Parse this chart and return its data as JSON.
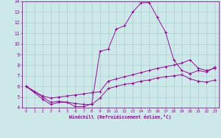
{
  "xlabel": "Windchill (Refroidissement éolien,°C)",
  "bg_color": "#cce8e8",
  "grid_color": "#aacccc",
  "line_color": "#990099",
  "xlim": [
    -0.5,
    23.5
  ],
  "ylim": [
    4,
    14
  ],
  "xticks": [
    0,
    1,
    2,
    3,
    4,
    5,
    6,
    7,
    8,
    9,
    10,
    11,
    12,
    13,
    14,
    15,
    16,
    17,
    18,
    19,
    20,
    21,
    22,
    23
  ],
  "yticks": [
    4,
    5,
    6,
    7,
    8,
    9,
    10,
    11,
    12,
    13,
    14
  ],
  "line1_x": [
    0,
    1,
    2,
    3,
    4,
    5,
    6,
    7,
    8,
    9,
    10,
    11,
    12,
    13,
    14,
    15,
    16,
    17,
    18,
    19,
    20,
    21,
    22,
    23
  ],
  "line1_y": [
    6.0,
    5.5,
    5.0,
    4.5,
    4.6,
    4.5,
    4.1,
    4.1,
    4.35,
    9.3,
    9.5,
    11.4,
    11.7,
    13.0,
    13.85,
    13.9,
    12.5,
    11.1,
    8.5,
    7.5,
    7.2,
    7.5,
    7.35,
    7.8
  ],
  "line2_x": [
    0,
    2,
    3,
    4,
    5,
    6,
    7,
    8,
    9,
    10,
    11,
    12,
    13,
    14,
    15,
    16,
    17,
    18,
    19,
    20,
    21,
    22,
    23
  ],
  "line2_y": [
    6.0,
    5.1,
    4.9,
    5.0,
    5.1,
    5.2,
    5.3,
    5.4,
    5.5,
    6.5,
    6.7,
    6.9,
    7.1,
    7.3,
    7.5,
    7.7,
    7.85,
    8.0,
    8.2,
    8.5,
    7.7,
    7.5,
    7.7
  ],
  "line3_x": [
    0,
    2,
    3,
    4,
    5,
    6,
    7,
    8,
    9,
    10,
    11,
    12,
    13,
    14,
    15,
    16,
    17,
    18,
    19,
    20,
    21,
    22,
    23
  ],
  "line3_y": [
    6.0,
    4.8,
    4.3,
    4.5,
    4.5,
    4.4,
    4.3,
    4.3,
    4.9,
    5.8,
    6.0,
    6.2,
    6.3,
    6.5,
    6.6,
    6.8,
    6.9,
    7.0,
    7.1,
    6.7,
    6.5,
    6.4,
    6.6
  ]
}
